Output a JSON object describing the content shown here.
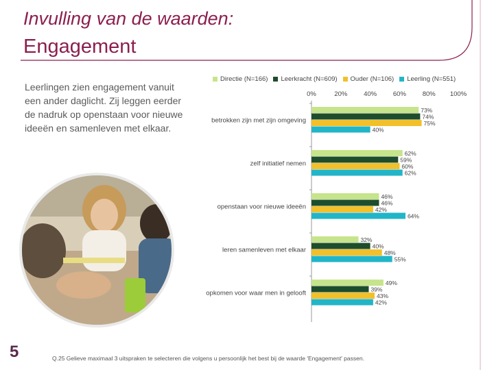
{
  "page": {
    "title_line1": "Invulling van de waarden:",
    "title_line2": "Engagement",
    "intro": "Leerlingen zien engagement vanuit een ander daglicht. Zij leggen eerder de nadruk op openstaan voor nieuwe ideeën en samenleven met elkaar.",
    "footnote": "Q.25 Gelieve maximaal 3 uitspraken te selecteren die volgens u persoonlijk het best bij de waarde 'Engagement' passen.",
    "page_number": "5"
  },
  "chart_data": {
    "type": "bar",
    "orientation": "horizontal",
    "xlim": [
      0,
      100
    ],
    "x_ticks": [
      "0%",
      "20%",
      "40%",
      "60%",
      "80%",
      "100%"
    ],
    "categories": [
      "betrokken zijn met zijn omgeving",
      "zelf initiatief nemen",
      "openstaan voor nieuwe ideeën",
      "leren samenleven met elkaar",
      "opkomen voor waar men in gelooft"
    ],
    "series": [
      {
        "name": "Directie (N=166)",
        "color": "#c6e48b",
        "values": [
          73,
          62,
          46,
          32,
          49
        ],
        "labels": [
          "73%",
          "62%",
          "46%",
          "32%",
          "49%"
        ]
      },
      {
        "name": "Leerkracht (N=609)",
        "color": "#1e4d2b",
        "values": [
          74,
          59,
          46,
          40,
          39
        ],
        "labels": [
          "74%",
          "59%",
          "46%",
          "40%",
          "39%"
        ]
      },
      {
        "name": "Ouder (N=106)",
        "color": "#f2c02b",
        "values": [
          75,
          60,
          42,
          48,
          43
        ],
        "labels": [
          "75%",
          "60%",
          "42%",
          "48%",
          "43%"
        ]
      },
      {
        "name": "Leerling (N=551)",
        "color": "#22b5c8",
        "values": [
          40,
          62,
          64,
          55,
          42
        ],
        "labels": [
          "40%",
          "62%",
          "64%",
          "55%",
          "42%"
        ]
      }
    ],
    "legend_position": "top"
  }
}
